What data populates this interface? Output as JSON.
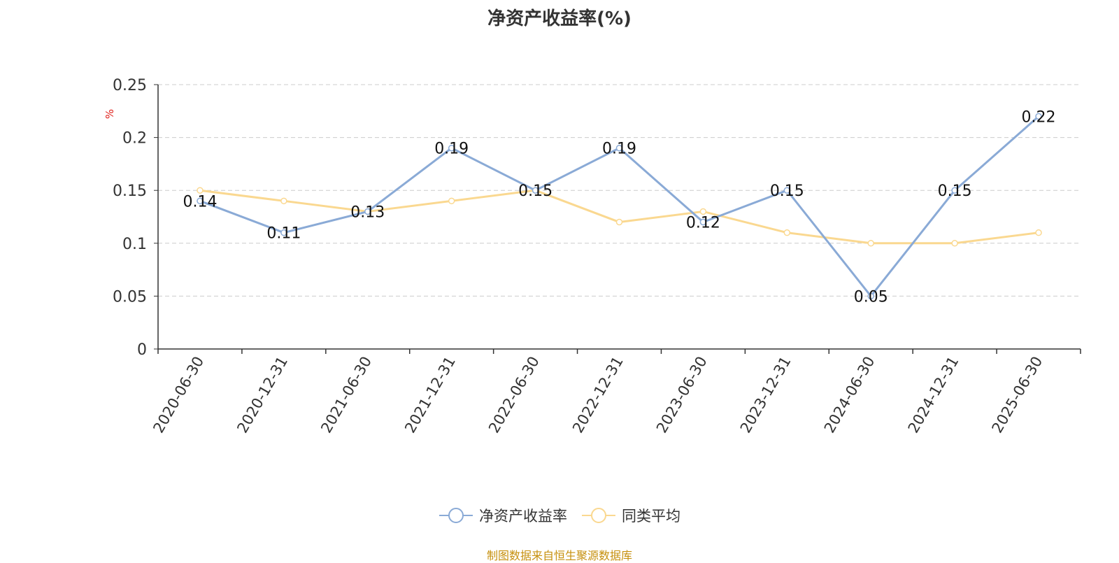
{
  "chart_data": {
    "type": "line",
    "title": "净资产收益率(%)",
    "ylabel": "%",
    "xlabel": "",
    "categories": [
      "2020-06-30",
      "2020-12-31",
      "2021-06-30",
      "2021-12-31",
      "2022-06-30",
      "2022-12-31",
      "2023-06-30",
      "2023-12-31",
      "2024-06-30",
      "2024-12-31",
      "2025-06-30"
    ],
    "y_ticks": [
      "0",
      "0.05",
      "0.1",
      "0.15",
      "0.2",
      "0.25"
    ],
    "ylim": [
      0,
      0.25
    ],
    "grid": true,
    "legend_position": "bottom-center",
    "series": [
      {
        "name": "净资产收益率",
        "color": "#8aaad6",
        "values": [
          0.14,
          0.11,
          0.13,
          0.19,
          0.15,
          0.19,
          0.12,
          0.15,
          0.05,
          0.15,
          0.22
        ],
        "labels": [
          "0.14",
          "0.11",
          "0.13",
          "0.19",
          "0.15",
          "0.19",
          "0.12",
          "0.15",
          "0.05",
          "0.15",
          "0.22"
        ]
      },
      {
        "name": "同类平均",
        "color": "#fad890",
        "values": [
          0.15,
          0.14,
          0.13,
          0.14,
          0.15,
          0.12,
          0.13,
          0.11,
          0.1,
          0.1,
          0.11
        ]
      }
    ]
  },
  "footer": {
    "source": "制图数据来自恒生聚源数据库"
  }
}
